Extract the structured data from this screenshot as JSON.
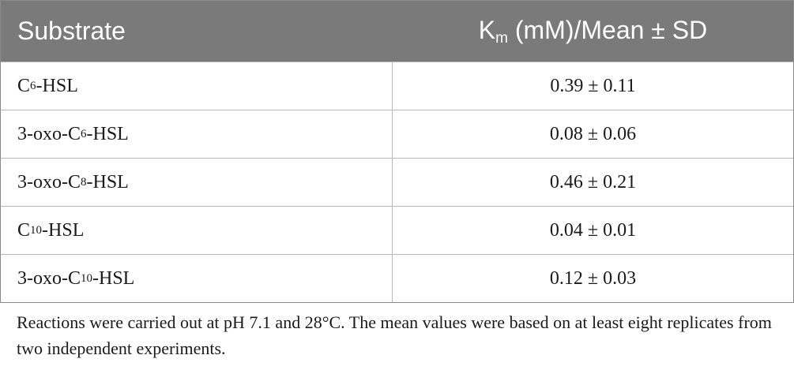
{
  "table": {
    "header": {
      "substrate": "Substrate",
      "km_main": "K",
      "km_sub": "m",
      "km_rest": " (mM)/Mean ± SD"
    },
    "rows": [
      {
        "prefix": "C",
        "sub": "6",
        "suffix": "-HSL",
        "value": "0.39 ± 0.11"
      },
      {
        "prefix": "3-oxo-C",
        "sub": "6",
        "suffix": "-HSL",
        "value": "0.08 ± 0.06"
      },
      {
        "prefix": "3-oxo-C",
        "sub": "8",
        "suffix": "-HSL",
        "value": "0.46 ± 0.21"
      },
      {
        "prefix": "C",
        "sub": "10",
        "suffix": "-HSL",
        "value": "0.04 ± 0.01"
      },
      {
        "prefix": "3-oxo-C",
        "sub": "10",
        "suffix": "-HSL",
        "value": "0.12 ± 0.03"
      }
    ]
  },
  "footnote": "Reactions were carried out at pH 7.1 and 28°C. The mean values were based on at least eight replicates from two independent experiments.",
  "colors": {
    "header_bg": "#7a7a7a",
    "header_text": "#ffffff",
    "grid": "#b8b8b8"
  }
}
